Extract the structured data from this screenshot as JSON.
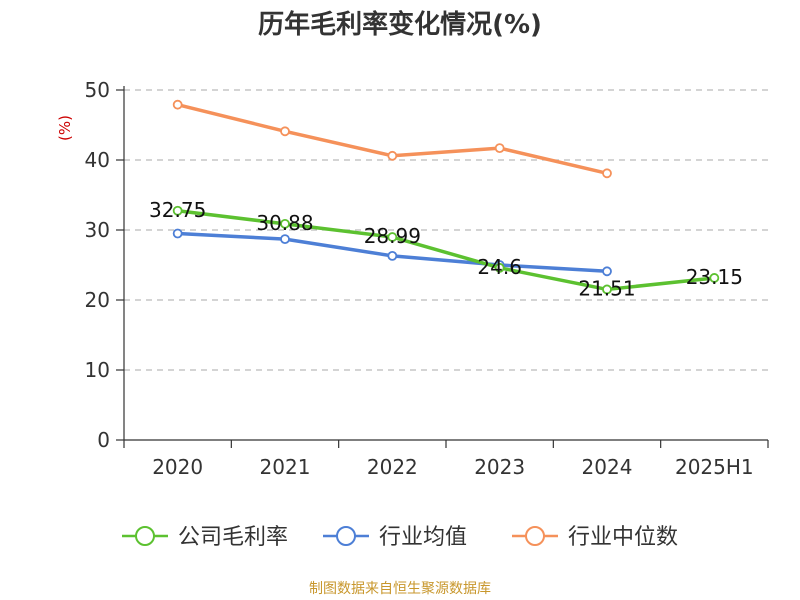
{
  "title": "历年毛利率变化情况(%)",
  "source": "制图数据来自恒生聚源数据库",
  "chart_data": {
    "type": "line",
    "title": "历年毛利率变化情况(%)",
    "ylabel": "(%)",
    "xlabel": "",
    "categories": [
      "2020",
      "2021",
      "2022",
      "2023",
      "2024",
      "2025H1"
    ],
    "ylim": [
      0,
      50
    ],
    "yticks": [
      0,
      10,
      20,
      30,
      40,
      50
    ],
    "grid": true,
    "legend_position": "bottom",
    "series": [
      {
        "name": "公司毛利率",
        "color": "#5cc130",
        "values": [
          32.75,
          30.88,
          28.99,
          24.6,
          21.51,
          23.15
        ],
        "data_labels": [
          "32.75",
          "30.88",
          "28.99",
          "24.6",
          "21.51",
          "23.15"
        ]
      },
      {
        "name": "行业均值",
        "color": "#4d7fd6",
        "values": [
          29.5,
          28.7,
          26.3,
          25.0,
          24.1,
          null
        ]
      },
      {
        "name": "行业中位数",
        "color": "#f5915a",
        "values": [
          47.9,
          44.1,
          40.6,
          41.7,
          38.1,
          null
        ]
      }
    ]
  }
}
